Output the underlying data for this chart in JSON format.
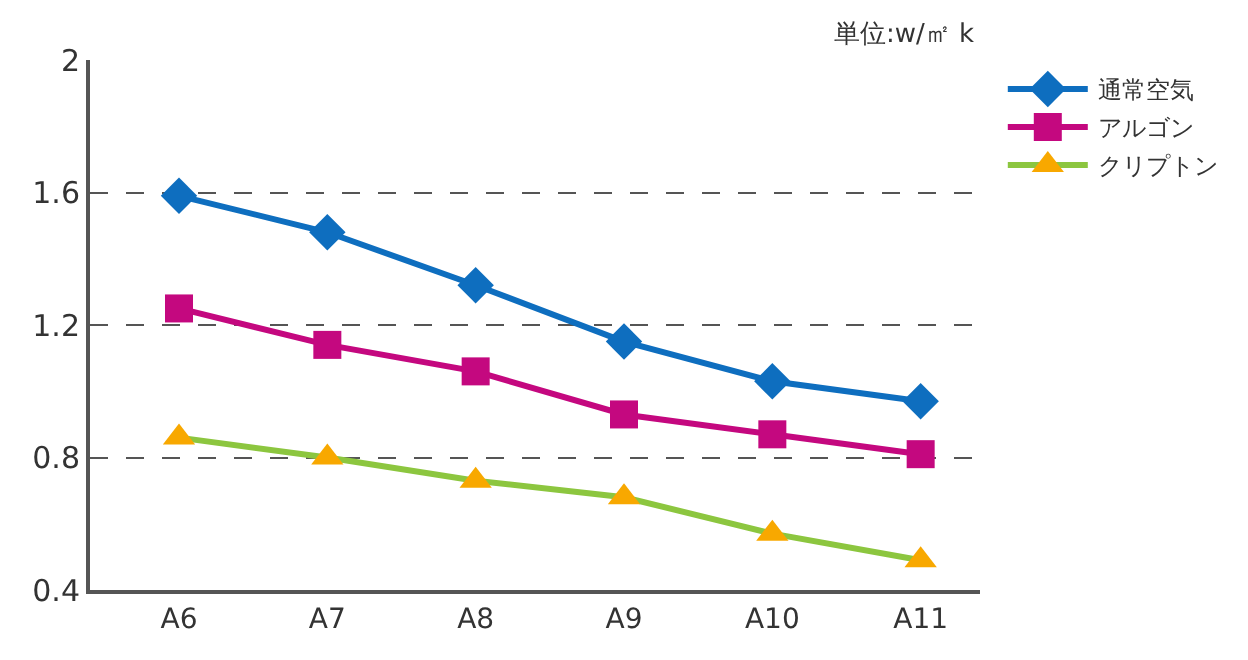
{
  "chart_data": {
    "type": "line",
    "categories": [
      "A6",
      "A7",
      "A8",
      "A9",
      "A10",
      "A11"
    ],
    "series": [
      {
        "name": "通常空気",
        "color": "#0e6ebf",
        "marker": "diamond",
        "values": [
          1.59,
          1.48,
          1.32,
          1.15,
          1.03,
          0.97
        ]
      },
      {
        "name": "アルゴン",
        "color": "#c4087f",
        "marker": "square",
        "values": [
          1.25,
          1.14,
          1.06,
          0.93,
          0.87,
          0.81
        ]
      },
      {
        "name": "クリプトン",
        "color": "#8cc63f",
        "colors": [
          "#f8a800",
          "#f8a800",
          "#f8a800",
          "#f8a800",
          "#f8a800",
          "#f8a800"
        ],
        "marker": "triangle",
        "values": [
          0.86,
          0.8,
          0.73,
          0.68,
          0.57,
          0.49
        ]
      }
    ],
    "ylim": [
      0.4,
      2
    ],
    "yticks": [
      {
        "value": 0.4,
        "label": "0.4"
      },
      {
        "value": 0.8,
        "label": "0.8"
      },
      {
        "value": 1.2,
        "label": "1.2"
      },
      {
        "value": 1.6,
        "label": "1.6"
      },
      2
    ],
    "grid": "y",
    "legend": "right",
    "line_style": "solid",
    "annotations": [
      "単位:w/㎡ k"
    ]
  }
}
